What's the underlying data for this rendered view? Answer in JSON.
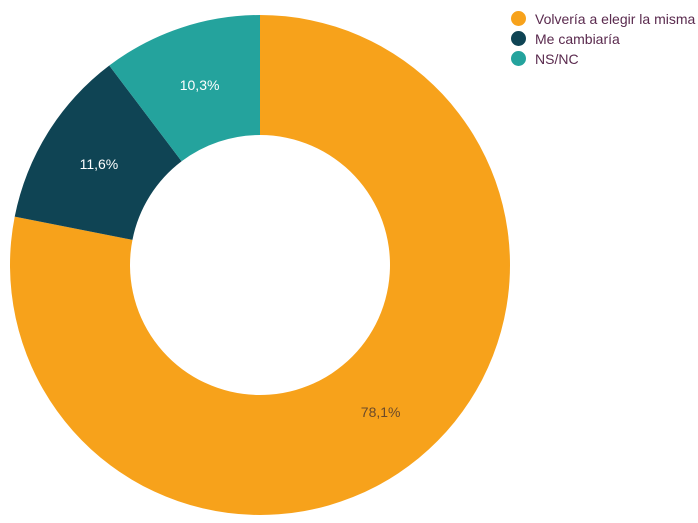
{
  "chart_data": {
    "type": "pie",
    "donut": true,
    "categories": [
      "Volvería a elegir la misma",
      "Me cambiaría",
      "NS/NC"
    ],
    "values": [
      78.1,
      11.6,
      10.3
    ],
    "data_labels": [
      "78,1%",
      "11,6%",
      "10,3%"
    ],
    "colors": [
      "#F7A21B",
      "#0F4454",
      "#24A39D"
    ],
    "label_colors": [
      "#6b4a2a",
      "#ffffff",
      "#ffffff"
    ],
    "legend_position": "top-right",
    "start_angle_deg": 0,
    "direction": "clockwise"
  },
  "legend": {
    "items": [
      {
        "label": "Volvería a elegir la misma",
        "color": "#F7A21B"
      },
      {
        "label": "Me cambiaría",
        "color": "#0F4454"
      },
      {
        "label": "NS/NC",
        "color": "#24A39D"
      }
    ]
  }
}
